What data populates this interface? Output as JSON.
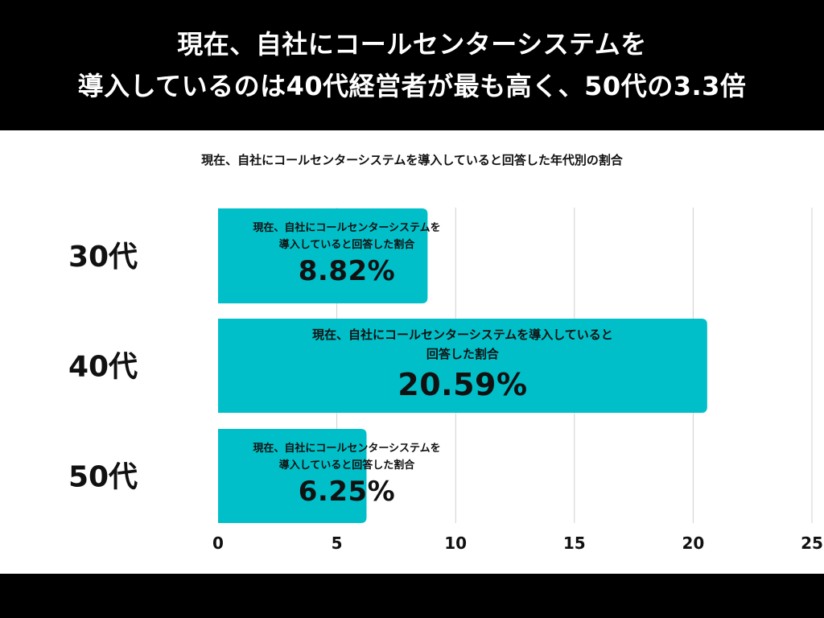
{
  "header": {
    "headline_line1": "現在、自社にコールセンターシステムを",
    "headline_line2": "導入しているのは40代経営者が最も高く、50代の3.3倍"
  },
  "colors": {
    "bar": "#00BFC8",
    "band": "#000000",
    "grid": "#d0d0d0",
    "text": "#111111"
  },
  "chart_data": {
    "type": "bar",
    "orientation": "horizontal",
    "title": "現在、自社にコールセンターシステムを導入していると回答した年代別の割合",
    "categories": [
      "30代",
      "40代",
      "50代"
    ],
    "values": [
      8.82,
      20.59,
      6.25
    ],
    "value_labels": [
      "8.82%",
      "20.59%",
      "6.25%"
    ],
    "bar_label_lines": [
      [
        "現在、自社にコールセンターシステムを",
        "導入していると回答した割合"
      ],
      [
        "現在、自社にコールセンターシステムを導入していると",
        "回答した割合"
      ],
      [
        "現在、自社にコールセンターシステムを",
        "導入していると回答した割合"
      ]
    ],
    "xlim": [
      0,
      25
    ],
    "xticks": [
      0,
      5,
      10,
      15,
      20,
      25
    ],
    "xtick_labels": [
      "0",
      "5",
      "10",
      "15",
      "20",
      "25"
    ],
    "grid": true,
    "legend": "none"
  }
}
